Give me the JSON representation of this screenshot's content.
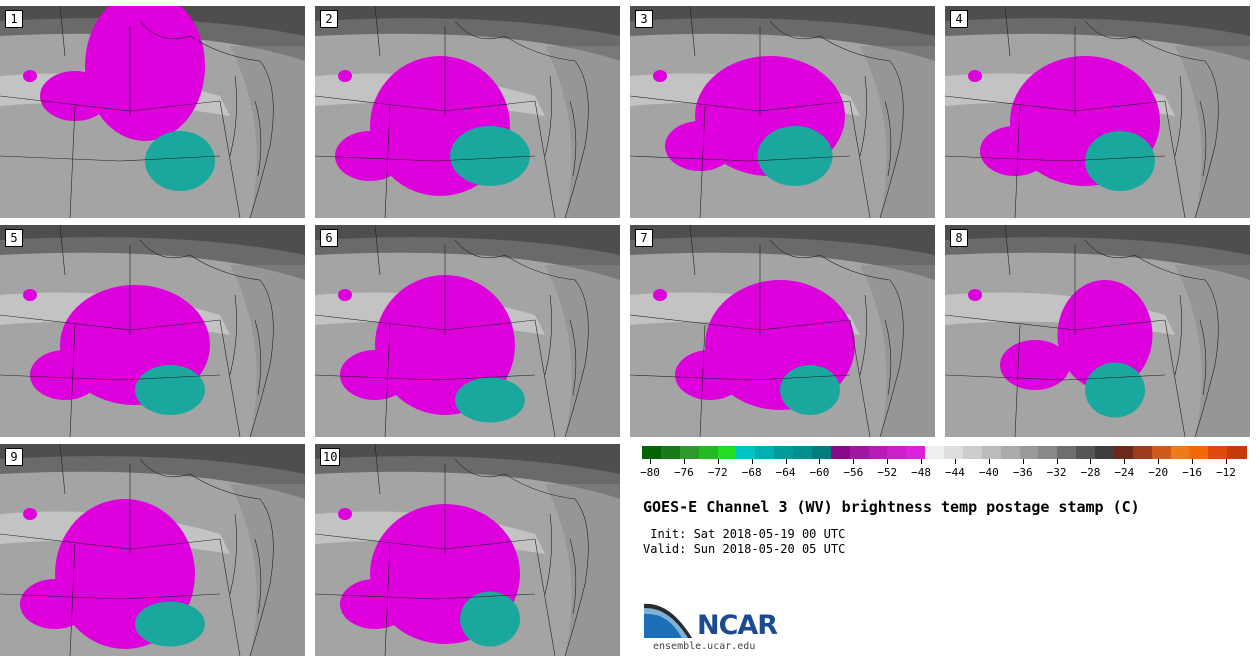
{
  "panels": [
    {
      "label": "1"
    },
    {
      "label": "2"
    },
    {
      "label": "3"
    },
    {
      "label": "4"
    },
    {
      "label": "5"
    },
    {
      "label": "6"
    },
    {
      "label": "7"
    },
    {
      "label": "8"
    },
    {
      "label": "9"
    },
    {
      "label": "10"
    }
  ],
  "colorbar": {
    "min": -80,
    "max": -10,
    "step": 2,
    "tick_labels": [
      "−80",
      "−76",
      "−72",
      "−68",
      "−64",
      "−60",
      "−56",
      "−52",
      "−48",
      "−44",
      "−40",
      "−36",
      "−32",
      "−28",
      "−24",
      "−20",
      "−16",
      "−12"
    ],
    "colors": [
      "#006400",
      "#1a7a1a",
      "#2e9a2e",
      "#22bb22",
      "#22dd22",
      "#00c4c4",
      "#00b0b0",
      "#009c9c",
      "#008e8e",
      "#007c7c",
      "#8a0a8a",
      "#a016a0",
      "#b81ab8",
      "#cc1ecc",
      "#dd22dd",
      "#eeeeee",
      "#dddddd",
      "#cccccc",
      "#bbbbbb",
      "#aaaaaa",
      "#999999",
      "#888888",
      "#6e6e6e",
      "#555555",
      "#3e3e3e",
      "#6a2a1a",
      "#9e3a1e",
      "#d05a1a",
      "#ee7a1a",
      "#f06a0a",
      "#e04a0a",
      "#c83a0a"
    ]
  },
  "title": "GOES-E Channel 3 (WV) brightness temp postage stamp (C)",
  "init_line": " Init: Sat 2018-05-19 00 UTC",
  "valid_line": "Valid: Sun 2018-05-20 05 UTC",
  "logo": {
    "name": "NCAR",
    "url": "ensemble.ucar.edu"
  },
  "colors": {
    "magenta": "#dd00dd",
    "teal": "#1aa89e",
    "gray_bg": "#9a9a9a"
  }
}
